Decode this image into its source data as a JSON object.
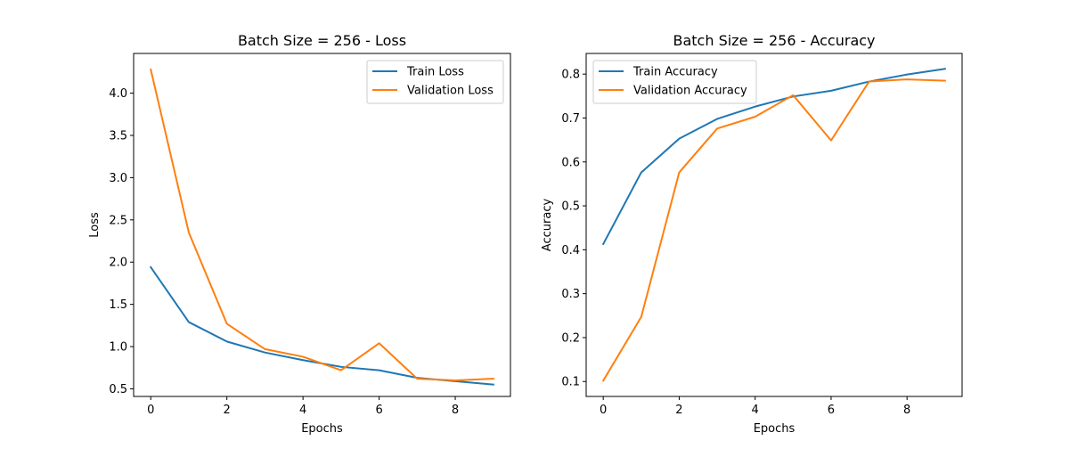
{
  "chart_data": [
    {
      "type": "line",
      "title": "Batch Size = 256 - Loss",
      "xlabel": "Epochs",
      "ylabel": "Loss",
      "x": [
        0,
        1,
        2,
        3,
        4,
        5,
        6,
        7,
        8,
        9
      ],
      "xlim": [
        -0.45,
        9.45
      ],
      "ylim": [
        0.41,
        4.47
      ],
      "xticks": [
        0,
        2,
        4,
        6,
        8
      ],
      "xtick_labels": [
        "0",
        "2",
        "4",
        "6",
        "8"
      ],
      "yticks": [
        0.5,
        1.0,
        1.5,
        2.0,
        2.5,
        3.0,
        3.5,
        4.0
      ],
      "ytick_labels": [
        "0.5",
        "1.0",
        "1.5",
        "2.0",
        "2.5",
        "3.0",
        "3.5",
        "4.0"
      ],
      "grid": false,
      "legend_position": "upper right",
      "series": [
        {
          "name": "Train Loss",
          "color": "#1f77b4",
          "values": [
            1.94,
            1.29,
            1.06,
            0.93,
            0.84,
            0.76,
            0.72,
            0.63,
            0.59,
            0.55
          ]
        },
        {
          "name": "Validation Loss",
          "color": "#ff7f0e",
          "values": [
            4.28,
            2.35,
            1.27,
            0.97,
            0.88,
            0.72,
            1.04,
            0.62,
            0.6,
            0.62
          ]
        }
      ]
    },
    {
      "type": "line",
      "title": "Batch Size = 256 - Accuracy",
      "xlabel": "Epochs",
      "ylabel": "Accuracy",
      "x": [
        0,
        1,
        2,
        3,
        4,
        5,
        6,
        7,
        8,
        9
      ],
      "xlim": [
        -0.45,
        9.45
      ],
      "ylim": [
        0.066,
        0.847
      ],
      "xticks": [
        0,
        2,
        4,
        6,
        8
      ],
      "xtick_labels": [
        "0",
        "2",
        "4",
        "6",
        "8"
      ],
      "yticks": [
        0.1,
        0.2,
        0.3,
        0.4,
        0.5,
        0.6,
        0.7,
        0.8
      ],
      "ytick_labels": [
        "0.1",
        "0.2",
        "0.3",
        "0.4",
        "0.5",
        "0.6",
        "0.7",
        "0.8"
      ],
      "grid": false,
      "legend_position": "upper left",
      "series": [
        {
          "name": "Train Accuracy",
          "color": "#1f77b4",
          "values": [
            0.413,
            0.576,
            0.653,
            0.698,
            0.726,
            0.749,
            0.762,
            0.783,
            0.799,
            0.812
          ]
        },
        {
          "name": "Validation Accuracy",
          "color": "#ff7f0e",
          "values": [
            0.102,
            0.247,
            0.576,
            0.676,
            0.703,
            0.752,
            0.649,
            0.783,
            0.788,
            0.785
          ]
        }
      ]
    }
  ]
}
